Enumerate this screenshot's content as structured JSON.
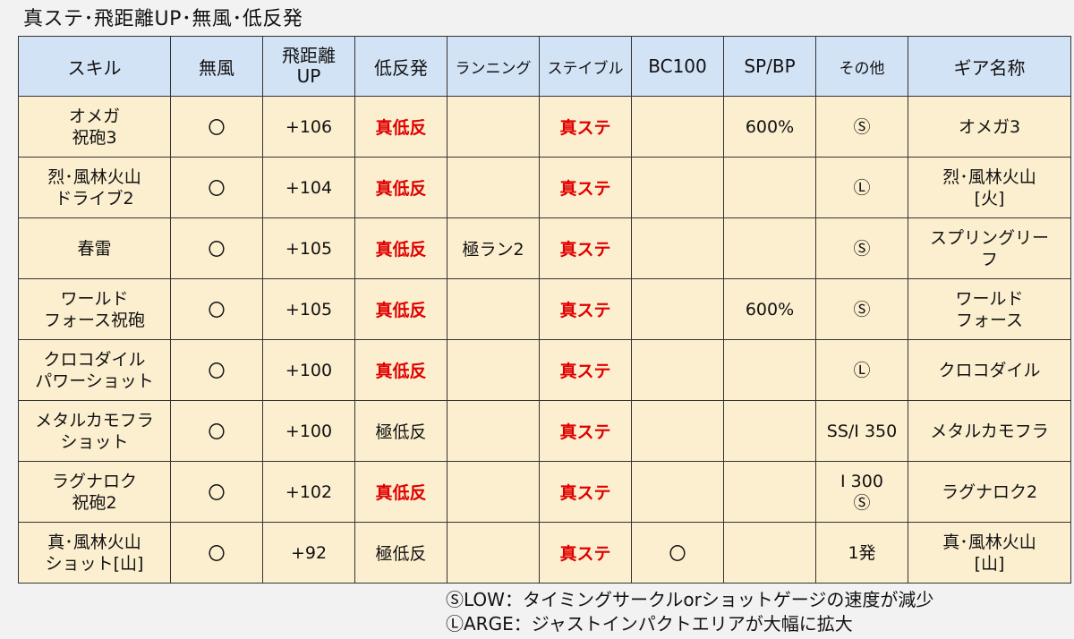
{
  "title": "真ステ･飛距離UP･無風･低反発",
  "headers": [
    "スキル",
    "無風",
    "飛距離UP",
    "低反発",
    "ランニング",
    "ステイブル",
    "BC100",
    "SP/BP",
    "その他",
    "ギア名称"
  ],
  "rows": [
    {
      "skill": [
        "オメガ",
        "祝砲3"
      ],
      "mufu": "〇",
      "distance": "+106",
      "lowrep": "真低反",
      "lowrep_red": true,
      "running": "",
      "stable": "真ステ",
      "bc100": "",
      "spbp": "600%",
      "other": [
        "Ⓢ"
      ],
      "gear": [
        "オメガ3"
      ]
    },
    {
      "skill": [
        "烈･風林火山",
        "ドライブ2"
      ],
      "mufu": "〇",
      "distance": "+104",
      "lowrep": "真低反",
      "lowrep_red": true,
      "running": "",
      "stable": "真ステ",
      "bc100": "",
      "spbp": "",
      "other": [
        "Ⓛ"
      ],
      "gear": [
        "烈･風林火山",
        "[火]"
      ]
    },
    {
      "skill": [
        "春雷"
      ],
      "mufu": "〇",
      "distance": "+105",
      "lowrep": "真低反",
      "lowrep_red": true,
      "running": "極ラン2",
      "stable": "真ステ",
      "bc100": "",
      "spbp": "",
      "other": [
        "Ⓢ"
      ],
      "gear": [
        "スプリングリー",
        "フ"
      ]
    },
    {
      "skill": [
        "ワールド",
        "フォース祝砲"
      ],
      "mufu": "〇",
      "distance": "+105",
      "lowrep": "真低反",
      "lowrep_red": true,
      "running": "",
      "stable": "真ステ",
      "bc100": "",
      "spbp": "600%",
      "other": [
        "Ⓢ"
      ],
      "gear": [
        "ワールド",
        "フォース"
      ]
    },
    {
      "skill": [
        "クロコダイル",
        "パワーショット"
      ],
      "mufu": "〇",
      "distance": "+100",
      "lowrep": "真低反",
      "lowrep_red": true,
      "running": "",
      "stable": "真ステ",
      "bc100": "",
      "spbp": "",
      "other": [
        "Ⓛ"
      ],
      "gear": [
        "クロコダイル"
      ]
    },
    {
      "skill": [
        "メタルカモフラ",
        "ショット"
      ],
      "mufu": "〇",
      "distance": "+100",
      "lowrep": "極低反",
      "lowrep_red": false,
      "running": "",
      "stable": "真ステ",
      "bc100": "",
      "spbp": "",
      "other": [
        "SS/I 350"
      ],
      "gear": [
        "メタルカモフラ"
      ]
    },
    {
      "skill": [
        "ラグナロク",
        "祝砲2"
      ],
      "mufu": "〇",
      "distance": "+102",
      "lowrep": "真低反",
      "lowrep_red": true,
      "running": "",
      "stable": "真ステ",
      "bc100": "",
      "spbp": "",
      "other": [
        "I 300",
        "Ⓢ"
      ],
      "gear": [
        "ラグナロク2"
      ]
    },
    {
      "skill": [
        "真･風林火山",
        "ショット[山]"
      ],
      "mufu": "〇",
      "distance": "+92",
      "lowrep": "極低反",
      "lowrep_red": false,
      "running": "",
      "stable": "真ステ",
      "bc100": "〇",
      "spbp": "",
      "other": [
        "1発"
      ],
      "gear": [
        "真･風林火山",
        "[山]"
      ]
    }
  ],
  "notes": [
    "ⓈLOW：タイミングサークルorショットゲージの速度が減少",
    "ⓁARGE：ジャストインパクトエリアが大幅に拡大"
  ],
  "colors": {
    "header_bg": "#d3e3f6",
    "cell_bg": "#fcefcf",
    "red_text": "#e00000"
  }
}
